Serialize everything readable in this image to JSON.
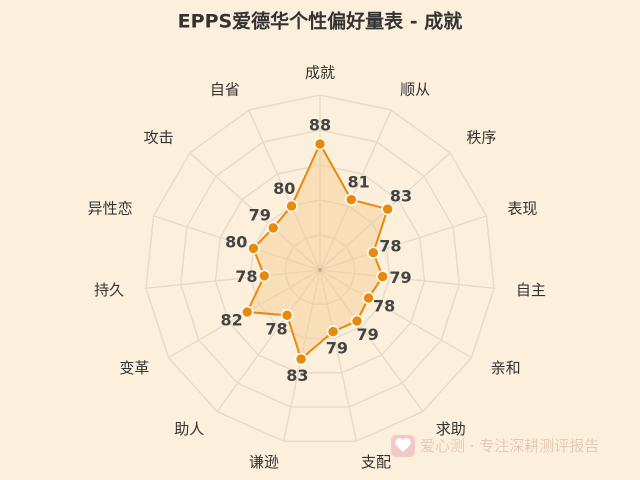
{
  "chart_data": {
    "type": "radar",
    "title": "EPPS爱德华个性偏好量表 - 成就",
    "categories": [
      "成就",
      "顺从",
      "秩序",
      "表现",
      "自主",
      "亲和",
      "求助",
      "支配",
      "谦逊",
      "助人",
      "变革",
      "持久",
      "异性恋",
      "攻击",
      "自省"
    ],
    "values": [
      88,
      81,
      83,
      78,
      79,
      78,
      79,
      79,
      83,
      78,
      82,
      78,
      80,
      79,
      80
    ],
    "rlim": [
      70,
      95
    ],
    "color": "#e8890c",
    "fill": "#f7c98a"
  },
  "watermark": "爱心测 · 专注深耕测评报告"
}
